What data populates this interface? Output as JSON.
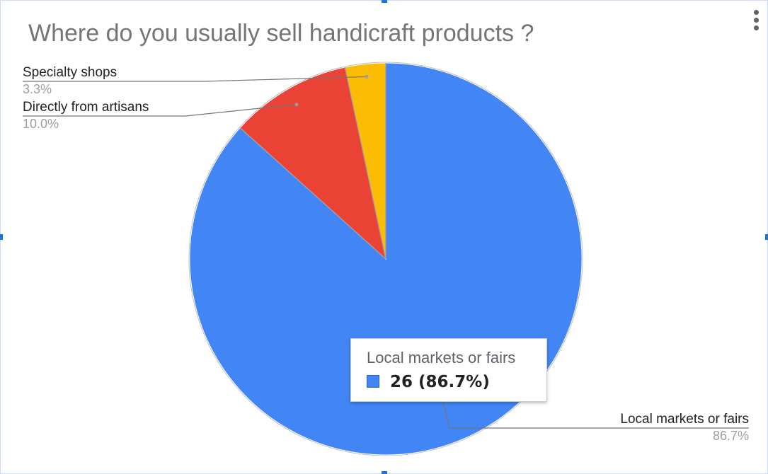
{
  "chart_data": {
    "type": "pie",
    "title": "Where do you usually sell handicraft products ?",
    "slices": [
      {
        "label": "Local markets or fairs",
        "value": 26,
        "percent_label": "86.7%",
        "color": "#4285f4"
      },
      {
        "label": "Directly from artisans",
        "value": 3,
        "percent_label": "10.0%",
        "color": "#ea4335"
      },
      {
        "label": "Specialty shops",
        "value": 1,
        "percent_label": "3.3%",
        "color": "#fbbc04"
      }
    ],
    "tooltip": {
      "label": "Local markets or fairs",
      "value_text": "26 (86.7%)"
    }
  },
  "colors": {
    "label_text": "#222222",
    "percent_text": "#9e9e9e",
    "leader_line": "#757575"
  }
}
